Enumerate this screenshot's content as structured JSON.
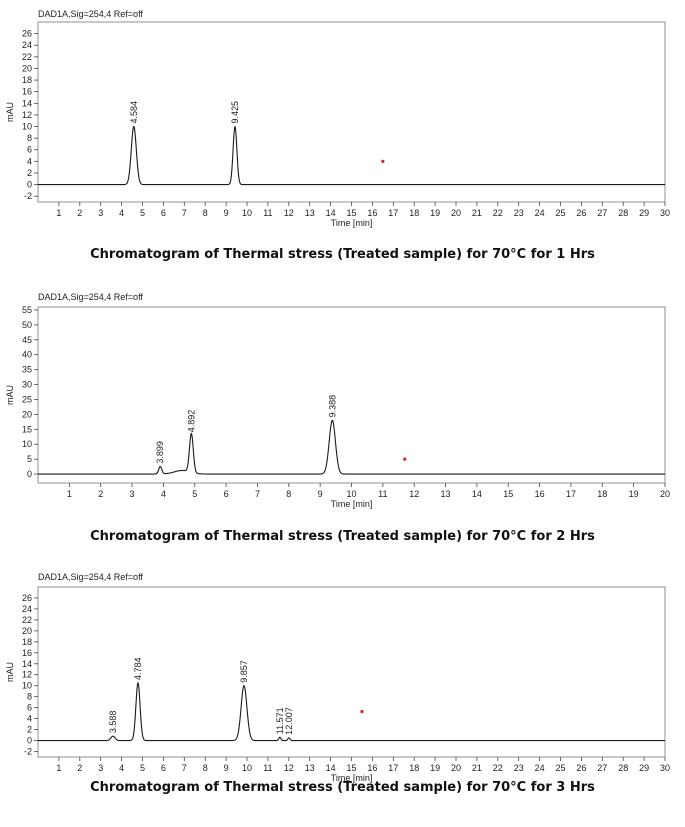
{
  "chart_data": [
    {
      "type": "line",
      "header": "DAD1A,Sig=254,4  Ref=off",
      "ylabel": "mAU",
      "xlabel": "Time [min]",
      "xlim": [
        0,
        30
      ],
      "ylim": [
        -3,
        28
      ],
      "xticks": [
        1,
        2,
        3,
        4,
        5,
        6,
        7,
        8,
        9,
        10,
        11,
        12,
        13,
        14,
        15,
        16,
        17,
        18,
        19,
        20,
        21,
        22,
        23,
        24,
        25,
        26,
        27,
        28,
        29,
        30
      ],
      "yticks": [
        -2,
        0,
        2,
        4,
        6,
        8,
        10,
        12,
        14,
        16,
        18,
        20,
        22,
        24,
        26
      ],
      "peaks": [
        {
          "rt": 4.584,
          "label": "4.584",
          "height": 10,
          "width": 0.12
        },
        {
          "rt": 9.425,
          "label": "9.425",
          "height": 10,
          "width": 0.09
        }
      ],
      "marker": {
        "x": 16.5,
        "y": 4
      },
      "caption": "Chromatogram of Thermal stress (Treated sample) for 70°C for 1 Hrs"
    },
    {
      "type": "line",
      "header": "DAD1A,Sig=254,4  Ref=off",
      "ylabel": "mAU",
      "xlabel": "Time [min]",
      "xlim": [
        0,
        20
      ],
      "ylim": [
        -3,
        56
      ],
      "xticks": [
        1,
        2,
        3,
        4,
        5,
        6,
        7,
        8,
        9,
        10,
        11,
        12,
        13,
        14,
        15,
        16,
        17,
        18,
        19,
        20
      ],
      "yticks": [
        0,
        5,
        10,
        15,
        20,
        25,
        30,
        35,
        40,
        45,
        50,
        55
      ],
      "peaks": [
        {
          "rt": 3.899,
          "label": "3.899",
          "height": 2.5,
          "width": 0.05
        },
        {
          "rt": 4.892,
          "label": "4.892",
          "height": 13,
          "width": 0.06
        },
        {
          "rt": 9.388,
          "label": "9.388",
          "height": 18,
          "width": 0.1
        }
      ],
      "bump": {
        "rt": 4.6,
        "height": 1.2,
        "width": 0.25
      },
      "marker": {
        "x": 11.7,
        "y": 5
      },
      "caption": "Chromatogram of Thermal stress (Treated sample) for 70°C for 2 Hrs"
    },
    {
      "type": "line",
      "header": "DAD1A,Sig=254,4  Ref=off",
      "ylabel": "mAU",
      "xlabel": "Time [min]",
      "xlim": [
        0,
        30
      ],
      "ylim": [
        -3,
        28
      ],
      "xticks": [
        1,
        2,
        3,
        4,
        5,
        6,
        7,
        8,
        9,
        10,
        11,
        12,
        13,
        14,
        15,
        16,
        17,
        18,
        19,
        20,
        21,
        22,
        23,
        24,
        25,
        26,
        27,
        28,
        29,
        30
      ],
      "yticks": [
        -2,
        0,
        2,
        4,
        6,
        8,
        10,
        12,
        14,
        16,
        18,
        20,
        22,
        24,
        26
      ],
      "peaks": [
        {
          "rt": 3.588,
          "label": "3.588",
          "height": 0.8,
          "width": 0.1
        },
        {
          "rt": 4.784,
          "label": "4.784",
          "height": 10.5,
          "width": 0.1
        },
        {
          "rt": 9.857,
          "label": "9.857",
          "height": 10,
          "width": 0.14
        },
        {
          "rt": 11.571,
          "label": "11.571",
          "height": 0.6,
          "width": 0.05
        },
        {
          "rt": 12.007,
          "label": "12.007",
          "height": 0.5,
          "width": 0.05
        }
      ],
      "marker": {
        "x": 15.5,
        "y": 5.3
      },
      "caption": "Chromatogram of Thermal stress (Treated sample) for 70°C for 3 Hrs"
    }
  ]
}
